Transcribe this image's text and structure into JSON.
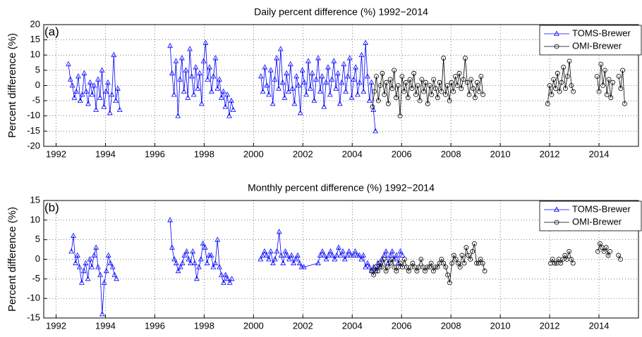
{
  "chart_data": [
    {
      "type": "line",
      "title": "Daily percent difference (%) 1992−2014",
      "ylabel": "Percent difference (%)",
      "annotation": "(a)",
      "xlim": [
        1991.5,
        2015.6
      ],
      "xticks": [
        1992,
        1994,
        1996,
        1998,
        2000,
        2002,
        2004,
        2006,
        2008,
        2010,
        2012,
        2014
      ],
      "ylim": [
        -20,
        20
      ],
      "yticks": [
        -20,
        -15,
        -10,
        -5,
        0,
        5,
        10,
        15,
        20
      ],
      "grid": true,
      "legend": "upper right",
      "series": [
        {
          "name": "TOMS-Brewer",
          "color": "#0000ff",
          "marker": "triangle",
          "x": [
            1992.5,
            1992.58,
            1992.66,
            1992.74,
            1992.82,
            1992.9,
            1992.98,
            1993.06,
            1993.14,
            1993.22,
            1993.3,
            1993.38,
            1993.46,
            1993.54,
            1993.62,
            1993.7,
            1993.78,
            1993.86,
            1993.94,
            1994.02,
            1994.1,
            1994.18,
            1994.26,
            1994.34,
            1994.42,
            1994.5,
            1994.58,
            null,
            1996.62,
            1996.7,
            1996.78,
            1996.86,
            1996.94,
            1997.02,
            1997.1,
            1997.18,
            1997.26,
            1997.34,
            1997.42,
            1997.5,
            1997.58,
            1997.66,
            1997.74,
            1997.82,
            1997.9,
            1997.98,
            1998.06,
            1998.14,
            1998.22,
            1998.3,
            1998.38,
            1998.46,
            1998.54,
            1998.62,
            1998.7,
            1998.78,
            1998.86,
            1998.94,
            1999.02,
            1999.1,
            1999.18,
            null,
            2000.3,
            2000.38,
            2000.46,
            2000.54,
            2000.62,
            2000.7,
            2000.78,
            2000.86,
            2000.94,
            2001.02,
            2001.1,
            2001.18,
            2001.26,
            2001.34,
            2001.42,
            2001.5,
            2001.58,
            2001.66,
            2001.74,
            2001.82,
            2001.9,
            2001.98,
            2002.06,
            2002.14,
            2002.22,
            2002.3,
            2002.38,
            2002.46,
            2002.54,
            2002.62,
            2002.7,
            2002.78,
            2002.86,
            2002.94,
            2003.02,
            2003.1,
            2003.18,
            2003.26,
            2003.34,
            2003.42,
            2003.5,
            2003.58,
            2003.66,
            2003.74,
            2003.82,
            2003.9,
            2003.98,
            2004.06,
            2004.14,
            2004.22,
            2004.3,
            2004.38,
            2004.46,
            2004.54,
            2004.62,
            2004.7,
            2004.78,
            2004.86,
            2004.94
          ],
          "values": [
            7,
            2,
            0,
            -4,
            -2,
            3,
            -5,
            -3,
            4,
            -2,
            -6,
            1,
            -3,
            0,
            -8,
            2,
            -4,
            5,
            -7,
            -2,
            1,
            -9,
            -3,
            10,
            -5,
            -1,
            -8,
            null,
            13,
            4,
            -3,
            8,
            -10,
            2,
            9,
            -2,
            5,
            -4,
            12,
            3,
            -3,
            6,
            -1,
            4,
            -6,
            8,
            14,
            2,
            6,
            -2,
            3,
            9,
            -1,
            2,
            -4,
            -2,
            -7,
            -3,
            -10,
            -5,
            -8,
            null,
            3,
            -2,
            6,
            0,
            -3,
            5,
            -6,
            2,
            9,
            -1,
            12,
            1,
            -4,
            4,
            -2,
            7,
            -1,
            -6,
            3,
            0,
            -9,
            5,
            1,
            -3,
            8,
            -1,
            4,
            -5,
            2,
            9,
            -2,
            3,
            -7,
            1,
            6,
            -3,
            2,
            8,
            -1,
            4,
            -6,
            1,
            7,
            -2,
            3,
            9,
            -4,
            2,
            6,
            -3,
            1,
            10,
            -2,
            14,
            3,
            -5,
            1,
            -8,
            -15
          ]
        },
        {
          "name": "OMI-Brewer",
          "color": "#000000",
          "marker": "circle",
          "x": [
            2004.82,
            2004.9,
            2004.98,
            2005.06,
            2005.14,
            2005.22,
            2005.3,
            2005.38,
            2005.46,
            2005.54,
            2005.62,
            2005.7,
            2005.78,
            2005.86,
            2005.94,
            2006.02,
            2006.1,
            2006.18,
            2006.26,
            2006.34,
            2006.42,
            2006.5,
            2006.58,
            2006.66,
            2006.74,
            2006.82,
            2006.9,
            2006.98,
            2007.06,
            2007.14,
            2007.22,
            2007.3,
            2007.38,
            2007.46,
            2007.54,
            2007.62,
            2007.7,
            2007.78,
            2007.86,
            2007.94,
            2008.02,
            2008.1,
            2008.18,
            2008.26,
            2008.34,
            2008.42,
            2008.5,
            2008.58,
            2008.66,
            2008.74,
            2008.82,
            2008.9,
            2008.98,
            2009.06,
            2009.14,
            2009.22,
            2009.3,
            null,
            2011.92,
            2012.0,
            2012.08,
            2012.16,
            2012.24,
            2012.32,
            2012.4,
            2012.48,
            2012.56,
            2012.64,
            2012.72,
            2012.8,
            2012.88,
            2012.96,
            null,
            2013.92,
            2014.0,
            2014.08,
            2014.16,
            2014.24,
            2014.32,
            2014.4,
            2014.48,
            2014.56,
            null,
            2014.8,
            2014.88,
            2014.96,
            2015.04
          ],
          "values": [
            -7,
            -2,
            3,
            -5,
            0,
            4,
            -3,
            1,
            -6,
            2,
            -1,
            5,
            -4,
            0,
            -10,
            3,
            -2,
            1,
            -4,
            2,
            -1,
            4,
            -3,
            0,
            -5,
            2,
            -2,
            1,
            -6,
            0,
            -3,
            2,
            -1,
            -4,
            1,
            -2,
            9,
            -3,
            0,
            -5,
            1,
            -2,
            3,
            0,
            4,
            -1,
            2,
            9,
            1,
            -3,
            2,
            -1,
            -4,
            1,
            -2,
            3,
            -3,
            null,
            -6,
            0,
            -3,
            2,
            -1,
            4,
            -2,
            1,
            6,
            -1,
            3,
            8,
            0,
            -2,
            null,
            3,
            -2,
            7,
            0,
            5,
            -3,
            2,
            -4,
            1,
            null,
            3,
            -1,
            5,
            -6
          ]
        }
      ]
    },
    {
      "type": "line",
      "title": "Monthly percent difference (%) 1992−2014",
      "ylabel": "Percent difference (%)",
      "annotation": "(b)",
      "xlim": [
        1991.5,
        2015.6
      ],
      "xticks": [
        1992,
        1994,
        1996,
        1998,
        2000,
        2002,
        2004,
        2006,
        2008,
        2010,
        2012,
        2014
      ],
      "ylim": [
        -15,
        15
      ],
      "yticks": [
        -15,
        -10,
        -5,
        0,
        5,
        10,
        15
      ],
      "grid": true,
      "legend": "upper right",
      "series": [
        {
          "name": "TOMS-Brewer",
          "color": "#0000ff",
          "marker": "triangle",
          "x": [
            1992.62,
            1992.7,
            1992.79,
            1992.87,
            1992.95,
            1993.04,
            1993.12,
            1993.2,
            1993.29,
            1993.37,
            1993.45,
            1993.54,
            1993.62,
            1993.7,
            1993.79,
            1993.87,
            1993.95,
            1994.04,
            1994.12,
            1994.2,
            1994.29,
            1994.37,
            1994.45,
            null,
            1996.62,
            1996.7,
            1996.79,
            1996.87,
            1996.95,
            1997.04,
            1997.12,
            1997.2,
            1997.29,
            1997.37,
            1997.45,
            1997.54,
            1997.62,
            1997.7,
            1997.79,
            1997.87,
            1997.95,
            1998.04,
            1998.12,
            1998.2,
            1998.29,
            1998.37,
            1998.45,
            1998.54,
            1998.62,
            1998.7,
            1998.79,
            1998.87,
            1998.95,
            1999.04,
            1999.12,
            null,
            2000.29,
            2000.37,
            2000.45,
            2000.54,
            2000.62,
            2000.7,
            2000.79,
            2000.87,
            2000.95,
            2001.04,
            2001.12,
            2001.2,
            2001.29,
            2001.37,
            2001.45,
            2001.54,
            2001.62,
            2001.7,
            2001.79,
            2001.87,
            2001.95,
            2002.04,
            2002.62,
            2002.7,
            2002.79,
            2002.87,
            2002.95,
            2003.04,
            2003.12,
            2003.2,
            2003.29,
            2003.37,
            2003.45,
            2003.54,
            2003.62,
            2003.7,
            2003.79,
            2003.87,
            2003.95,
            2004.04,
            2004.12,
            2004.2,
            2004.29,
            2004.37,
            2004.45,
            2004.54,
            2004.62,
            2004.7,
            2004.79,
            2004.87,
            2004.95,
            2005.04,
            2005.12,
            2005.2,
            2005.29,
            2005.37,
            2005.45,
            2005.54,
            2005.62,
            2005.7,
            2005.79,
            2005.87,
            2005.95,
            2006.04
          ],
          "values": [
            2,
            6,
            -1,
            1,
            -2,
            -6,
            -3,
            -1,
            -5,
            0,
            -2,
            1,
            3,
            -2,
            -4,
            -14,
            -6,
            -3,
            1,
            -1,
            -2,
            -4,
            -5,
            null,
            10,
            3,
            0,
            -1,
            -3,
            -2,
            -1,
            1,
            2,
            0,
            -1,
            2,
            -1,
            -5,
            -2,
            0,
            4,
            3,
            -1,
            1,
            1,
            -2,
            -1,
            5,
            -2,
            -4,
            -6,
            -4,
            -5,
            -6,
            -5,
            null,
            0,
            1,
            2,
            1,
            0,
            2,
            -1,
            0,
            2,
            7,
            1,
            -1,
            2,
            1,
            0,
            1,
            -1,
            0,
            1,
            -1,
            -2,
            -2,
            -1,
            1,
            2,
            1,
            0,
            1,
            2,
            1,
            0,
            1,
            3,
            1,
            2,
            0,
            1,
            2,
            1,
            1,
            2,
            1,
            1,
            0,
            1,
            -2,
            -1,
            -2,
            -3,
            -2,
            -3,
            -1,
            -2,
            0,
            1,
            2,
            -1,
            1,
            2,
            0,
            1,
            -1,
            2,
            1
          ]
        },
        {
          "name": "OMI-Brewer",
          "color": "#000000",
          "marker": "circle",
          "x": [
            2004.79,
            2004.87,
            2004.95,
            2005.04,
            2005.12,
            2005.2,
            2005.29,
            2005.37,
            2005.45,
            2005.54,
            2005.62,
            2005.7,
            2005.79,
            2005.87,
            2005.95,
            2006.04,
            2006.12,
            2006.2,
            2006.29,
            2006.37,
            2006.45,
            2006.54,
            2006.62,
            2006.7,
            2006.79,
            2006.87,
            2006.95,
            2007.04,
            2007.12,
            2007.2,
            2007.29,
            2007.37,
            2007.45,
            2007.54,
            2007.62,
            2007.7,
            2007.79,
            2007.87,
            2007.95,
            2008.04,
            2008.12,
            2008.2,
            2008.29,
            2008.37,
            2008.45,
            2008.54,
            2008.62,
            2008.7,
            2008.79,
            2008.87,
            2008.95,
            2009.04,
            2009.12,
            2009.2,
            2009.29,
            2009.37,
            null,
            2012.04,
            2012.12,
            2012.2,
            2012.29,
            2012.37,
            2012.45,
            2012.54,
            2012.62,
            2012.7,
            2012.79,
            2012.87,
            2012.95,
            null,
            2013.95,
            2014.04,
            2014.12,
            2014.2,
            2014.29,
            2014.37,
            2014.45,
            null,
            2014.79,
            2014.87
          ],
          "values": [
            -3,
            -4,
            -2,
            -3,
            -1,
            -2,
            0,
            -3,
            -2,
            -1,
            0,
            -2,
            -3,
            -2,
            -1,
            -2,
            0,
            -2,
            -3,
            -2,
            -1,
            -2,
            -3,
            -2,
            0,
            -2,
            -3,
            -2,
            -2,
            -1,
            -3,
            -2,
            -2,
            -1,
            0,
            -1,
            -2,
            -4,
            -6,
            -1,
            1,
            0,
            -1,
            -2,
            1,
            -1,
            3,
            1,
            0,
            2,
            4,
            -1,
            -1,
            0,
            -1,
            -3,
            null,
            -1,
            0,
            -1,
            -1,
            0,
            -1,
            0,
            1,
            0,
            2,
            0,
            -1,
            null,
            2,
            4,
            3,
            2,
            3,
            1,
            2,
            null,
            1,
            0
          ]
        }
      ]
    }
  ]
}
